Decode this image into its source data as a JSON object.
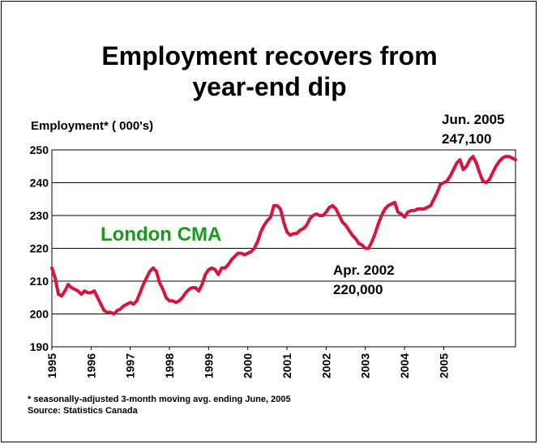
{
  "chart_data": {
    "type": "line",
    "title_line1": "Employment recovers from",
    "title_line2": "year-end dip",
    "ylabel": "Employment* ( 000's)",
    "ylim": [
      190,
      250
    ],
    "yticks": [
      190,
      200,
      210,
      220,
      230,
      240,
      250
    ],
    "xticks": [
      "1995",
      "1996",
      "1997",
      "1998",
      "1999",
      "2000",
      "2001",
      "2002",
      "2003",
      "2004",
      "2005"
    ],
    "grid": true,
    "series_label": "London CMA",
    "series_color": "#d9143c",
    "series_label_color": "#1a9a1a",
    "series": [
      {
        "x_start": "1995-01",
        "values": [
          214,
          211,
          206,
          205.5,
          207,
          209,
          208,
          207.5,
          207,
          206,
          207,
          206.5,
          206.5,
          207,
          205,
          203,
          201,
          200.5,
          200.5,
          200,
          201,
          201.5,
          202.5,
          203,
          203.5,
          203,
          204,
          206.5,
          209,
          211,
          213,
          214,
          213,
          209.5,
          207.5,
          205,
          204,
          204,
          203.5,
          204,
          205,
          206.5,
          207.5,
          208,
          208,
          207,
          209,
          212,
          213.5,
          214,
          213.5,
          212,
          214,
          214,
          215,
          216.5,
          217.5,
          218.5,
          218.5,
          218,
          218.5,
          219,
          220,
          222,
          225,
          227,
          228.5,
          229.5,
          233,
          233,
          232,
          228,
          225,
          224,
          224.5,
          224.5,
          225.5,
          226,
          227,
          229,
          230,
          230.5,
          230,
          230,
          231,
          232.5,
          233,
          232,
          230,
          228,
          227,
          225.5,
          224,
          223,
          221.5,
          221,
          220,
          220,
          222,
          224.5,
          227.5,
          230,
          232,
          233,
          233.5,
          234,
          231,
          230.5,
          229.5,
          231,
          231.5,
          231.5,
          232,
          232,
          232,
          232.5,
          233,
          235,
          237,
          239.5,
          240,
          240.5,
          242,
          244,
          246,
          247,
          244,
          245,
          247,
          248,
          246,
          243,
          240.5,
          240,
          241,
          243,
          245,
          246.5,
          247.5,
          248,
          248,
          247.5,
          247
        ]
      }
    ],
    "annotations": [
      {
        "line1": "Apr. 2002",
        "line2": "220,000"
      },
      {
        "line1": "Jun. 2005",
        "line2": "247,100"
      }
    ]
  },
  "footnotes": {
    "note": "* seasonally-adjusted 3-month moving avg. ending June, 2005",
    "source": "Source:  Statistics Canada"
  }
}
